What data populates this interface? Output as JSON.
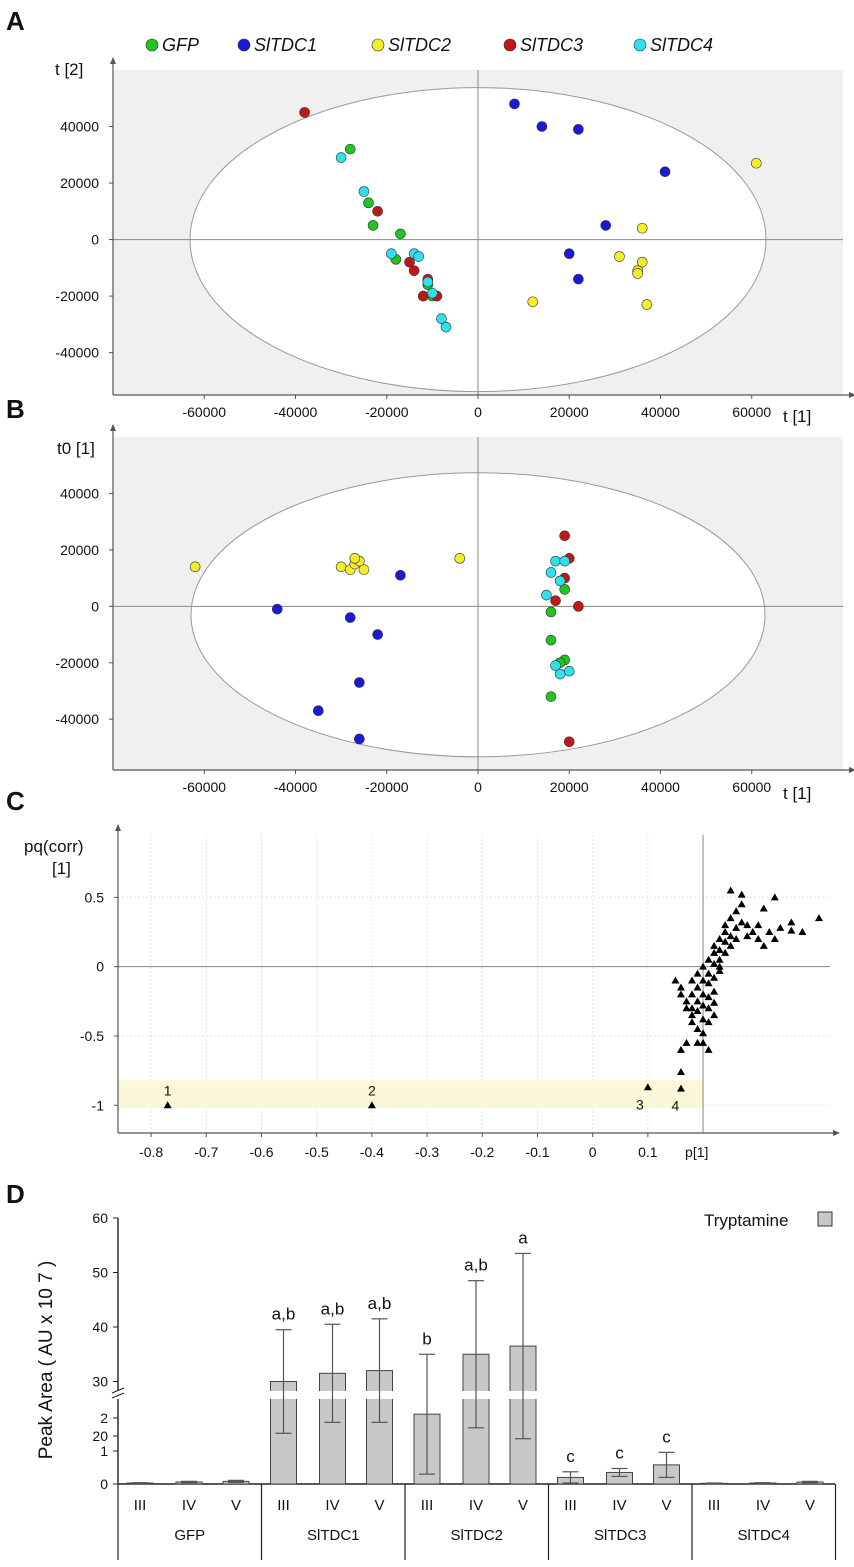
{
  "chart_data": [
    {
      "panel": "A",
      "type": "scatter",
      "xlabel": "t [1]",
      "ylabel": "t [2]",
      "xticks": [
        "-60000",
        "-40000",
        "-20000",
        "0",
        "20000",
        "40000",
        "60000"
      ],
      "yticks": [
        "40000",
        "20000",
        "0",
        "-20000",
        "-40000"
      ],
      "xlim": [
        -80000,
        80000
      ],
      "ylim": [
        -55000,
        60000
      ],
      "legend": [
        {
          "name": "GFP",
          "color": "#22c322"
        },
        {
          "name": "SlTDC1",
          "color": "#1a1ad6"
        },
        {
          "name": "SlTDC2",
          "color": "#f2ee2a"
        },
        {
          "name": "SlTDC3",
          "color": "#c01818"
        },
        {
          "name": "SlTDC4",
          "color": "#2ee0ea"
        }
      ],
      "series": [
        {
          "name": "GFP",
          "points": [
            [
              -28000,
              32000
            ],
            [
              -24000,
              13000
            ],
            [
              -23000,
              5000
            ],
            [
              -17000,
              2000
            ],
            [
              -18000,
              -7000
            ],
            [
              -11000,
              -16000
            ],
            [
              -10000,
              -20000
            ]
          ]
        },
        {
          "name": "SlTDC1",
          "points": [
            [
              8000,
              48000
            ],
            [
              14000,
              40000
            ],
            [
              22000,
              39000
            ],
            [
              41000,
              24000
            ],
            [
              28000,
              5000
            ],
            [
              20000,
              -5000
            ],
            [
              22000,
              -14000
            ]
          ]
        },
        {
          "name": "SlTDC2",
          "points": [
            [
              61000,
              27000
            ],
            [
              36000,
              4000
            ],
            [
              31000,
              -6000
            ],
            [
              36000,
              -8000
            ],
            [
              35000,
              -11000
            ],
            [
              35000,
              -12000
            ],
            [
              12000,
              -22000
            ],
            [
              37000,
              -23000
            ]
          ]
        },
        {
          "name": "SlTDC3",
          "points": [
            [
              -38000,
              45000
            ],
            [
              -22000,
              10000
            ],
            [
              -15000,
              -8000
            ],
            [
              -14000,
              -11000
            ],
            [
              -11000,
              -14000
            ],
            [
              -12000,
              -20000
            ],
            [
              -9000,
              -20000
            ]
          ]
        },
        {
          "name": "SlTDC4",
          "points": [
            [
              -30000,
              29000
            ],
            [
              -25000,
              17000
            ],
            [
              -19000,
              -5000
            ],
            [
              -14000,
              -5000
            ],
            [
              -13000,
              -6000
            ],
            [
              -11000,
              -15000
            ],
            [
              -10000,
              -19000
            ],
            [
              -8000,
              -28000
            ],
            [
              -7000,
              -31000
            ]
          ]
        }
      ]
    },
    {
      "panel": "B",
      "type": "scatter",
      "xlabel": "t [1]",
      "ylabel": "t0 [1]",
      "xticks": [
        "-60000",
        "-40000",
        "-20000",
        "0",
        "20000",
        "40000",
        "60000"
      ],
      "yticks": [
        "40000",
        "20000",
        "0",
        "-20000",
        "-40000"
      ],
      "xlim": [
        -80000,
        80000
      ],
      "ylim": [
        -58000,
        60000
      ],
      "series": [
        {
          "name": "GFP",
          "points": [
            [
              19000,
              6000
            ],
            [
              16000,
              -2000
            ],
            [
              16000,
              -12000
            ],
            [
              19000,
              -19000
            ],
            [
              18000,
              -20000
            ],
            [
              16000,
              -32000
            ]
          ]
        },
        {
          "name": "SlTDC1",
          "points": [
            [
              -17000,
              11000
            ],
            [
              -44000,
              -1000
            ],
            [
              -28000,
              -4000
            ],
            [
              -22000,
              -10000
            ],
            [
              -26000,
              -27000
            ],
            [
              -35000,
              -37000
            ],
            [
              -26000,
              -47000
            ]
          ]
        },
        {
          "name": "SlTDC2",
          "points": [
            [
              -62000,
              14000
            ],
            [
              -30000,
              14000
            ],
            [
              -28000,
              13000
            ],
            [
              -25000,
              13000
            ],
            [
              -27000,
              15000
            ],
            [
              -26000,
              16000
            ],
            [
              -27000,
              17000
            ],
            [
              -4000,
              17000
            ]
          ]
        },
        {
          "name": "SlTDC3",
          "points": [
            [
              19000,
              25000
            ],
            [
              20000,
              17000
            ],
            [
              19000,
              10000
            ],
            [
              17000,
              2000
            ],
            [
              22000,
              0
            ],
            [
              20000,
              -48000
            ]
          ]
        },
        {
          "name": "SlTDC4",
          "points": [
            [
              17000,
              16000
            ],
            [
              19000,
              16000
            ],
            [
              16000,
              12000
            ],
            [
              18000,
              9000
            ],
            [
              15000,
              4000
            ],
            [
              17000,
              -21000
            ],
            [
              20000,
              -23000
            ],
            [
              18000,
              -24000
            ]
          ]
        }
      ]
    },
    {
      "panel": "C",
      "type": "scatter",
      "xlabel": "p[1]",
      "ylabel": "pq(corr)",
      "ylabel2": "[1]",
      "xticks": [
        "-0.8",
        "-0.7",
        "-0.6",
        "-0.5",
        "-0.4",
        "-0.3",
        "-0.2",
        "-0.1",
        "0",
        "0.1"
      ],
      "yticks": [
        "0.5",
        "0",
        "-0.5",
        "-1"
      ],
      "xlim": [
        -0.86,
        0.43
      ],
      "ylim": [
        -1.2,
        0.95
      ],
      "highlight_band": [
        -1.02,
        -0.82
      ],
      "annotations": [
        {
          "text": "1",
          "x": -0.77,
          "y": -1.0
        },
        {
          "text": "2",
          "x": -0.4,
          "y": -1.0
        },
        {
          "text": "3",
          "x": 0.1,
          "y": -0.87
        },
        {
          "text": "4",
          "x": 0.15,
          "y": -0.88
        }
      ],
      "labeled_points": [
        [
          -0.77,
          -1.0
        ],
        [
          -0.4,
          -1.0
        ],
        [
          0.1,
          -0.87
        ],
        [
          0.16,
          -0.88
        ],
        [
          0.16,
          -0.76
        ],
        [
          0.16,
          -0.6
        ],
        [
          0.17,
          -0.55
        ]
      ],
      "cluster_points": [
        [
          0.15,
          -0.1
        ],
        [
          0.16,
          -0.15
        ],
        [
          0.16,
          -0.2
        ],
        [
          0.17,
          -0.25
        ],
        [
          0.17,
          -0.3
        ],
        [
          0.18,
          -0.1
        ],
        [
          0.18,
          -0.2
        ],
        [
          0.18,
          -0.3
        ],
        [
          0.18,
          -0.35
        ],
        [
          0.18,
          -0.4
        ],
        [
          0.19,
          -0.05
        ],
        [
          0.19,
          -0.15
        ],
        [
          0.19,
          -0.25
        ],
        [
          0.19,
          -0.32
        ],
        [
          0.19,
          -0.45
        ],
        [
          0.2,
          0.0
        ],
        [
          0.2,
          -0.1
        ],
        [
          0.2,
          -0.2
        ],
        [
          0.2,
          -0.28
        ],
        [
          0.2,
          -0.38
        ],
        [
          0.2,
          -0.48
        ],
        [
          0.21,
          0.05
        ],
        [
          0.21,
          -0.05
        ],
        [
          0.21,
          -0.12
        ],
        [
          0.21,
          -0.22
        ],
        [
          0.21,
          -0.3
        ],
        [
          0.21,
          -0.4
        ],
        [
          0.22,
          0.1
        ],
        [
          0.22,
          0.02
        ],
        [
          0.22,
          -0.08
        ],
        [
          0.22,
          -0.18
        ],
        [
          0.22,
          -0.26
        ],
        [
          0.22,
          0.15
        ],
        [
          0.23,
          0.2
        ],
        [
          0.23,
          0.12
        ],
        [
          0.23,
          0.05
        ],
        [
          0.23,
          -0.03
        ],
        [
          0.24,
          0.25
        ],
        [
          0.24,
          0.18
        ],
        [
          0.24,
          0.1
        ],
        [
          0.24,
          0.3
        ],
        [
          0.25,
          0.35
        ],
        [
          0.25,
          0.22
        ],
        [
          0.25,
          0.15
        ],
        [
          0.26,
          0.4
        ],
        [
          0.26,
          0.28
        ],
        [
          0.26,
          0.2
        ],
        [
          0.27,
          0.45
        ],
        [
          0.27,
          0.32
        ],
        [
          0.28,
          0.3
        ],
        [
          0.28,
          0.22
        ],
        [
          0.29,
          0.25
        ],
        [
          0.3,
          0.2
        ],
        [
          0.3,
          0.3
        ],
        [
          0.31,
          0.15
        ],
        [
          0.32,
          0.25
        ],
        [
          0.33,
          0.2
        ],
        [
          0.25,
          0.55
        ],
        [
          0.27,
          0.52
        ],
        [
          0.31,
          0.42
        ],
        [
          0.34,
          0.28
        ],
        [
          0.36,
          0.32
        ],
        [
          0.38,
          0.25
        ],
        [
          0.41,
          0.35
        ],
        [
          0.36,
          0.26
        ],
        [
          0.33,
          0.5
        ],
        [
          0.23,
          0.0
        ],
        [
          0.22,
          -0.35
        ],
        [
          0.2,
          -0.55
        ],
        [
          0.21,
          -0.6
        ],
        [
          0.19,
          -0.55
        ]
      ]
    },
    {
      "panel": "D",
      "type": "bar",
      "ylabel": "Peak Area ( AU x 10 7 )",
      "legend": "Tryptamine",
      "yticks_upper": [
        "60",
        "50",
        "40",
        "30",
        "20"
      ],
      "yticks_lower": [
        "2",
        "1",
        "0"
      ],
      "groups": [
        "GFP",
        "SlTDC1",
        "SlTDC2",
        "SlTDC3",
        "SlTDC4"
      ],
      "subcategories": [
        "III",
        "IV",
        "V"
      ],
      "values": [
        [
          0.03,
          0.06,
          0.08
        ],
        [
          30,
          31.5,
          32
        ],
        [
          24,
          35,
          36.5
        ],
        [
          0.2,
          0.35,
          0.58
        ],
        [
          0.02,
          0.03,
          0.06
        ]
      ],
      "errors": [
        [
          0.01,
          0.02,
          0.03
        ],
        [
          9.5,
          9,
          9.5
        ],
        [
          11,
          13.5,
          17
        ],
        [
          0.17,
          0.12,
          0.38
        ],
        [
          0.01,
          0.01,
          0.02
        ]
      ],
      "letters": [
        [
          "",
          "",
          ""
        ],
        [
          "a,b",
          "a,b",
          "a,b"
        ],
        [
          "b",
          "a,b",
          "a"
        ],
        [
          "c",
          "c",
          "c"
        ],
        [
          "",
          "",
          ""
        ]
      ]
    }
  ],
  "panels": [
    "A",
    "B",
    "C",
    "D"
  ],
  "colors": {
    "grid_bg": "#f0f0f0",
    "axis": "#555555",
    "bar": "#c8c8c8",
    "band": "#fbf8d9"
  }
}
